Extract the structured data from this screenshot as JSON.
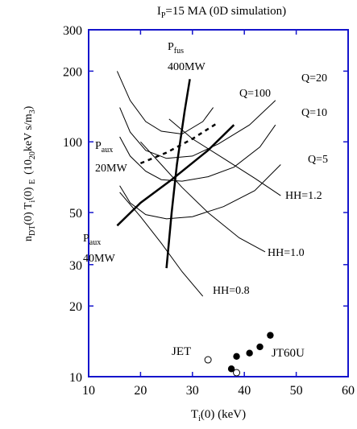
{
  "chart_data": {
    "type": "line",
    "title_main": "I",
    "title_sub": "P",
    "title_rest": "=15 MA (0D simulation)",
    "xlabel_main": "T",
    "xlabel_sub": "i",
    "xlabel_rest": "(0)  (keV)",
    "ylabel": {
      "n": "n",
      "n_sub": "DT",
      "n_rest": "(0) T",
      "t_sub": "i",
      "t_rest": "(0)  ",
      "tau_sub": "E",
      "unit_open": "(10",
      "unit_exp": "20",
      "unit_mid": "keV s/m",
      "unit_pow": "3",
      "unit_close": ")"
    },
    "xlim": [
      10,
      60
    ],
    "ylim": [
      10,
      300
    ],
    "yscale": "log",
    "x_ticks": [
      10,
      20,
      30,
      40,
      50,
      60
    ],
    "y_ticks": [
      10,
      20,
      30,
      50,
      100,
      200,
      300
    ],
    "x_tick_labels": [
      "10",
      "20",
      "30",
      "40",
      "50",
      "60"
    ],
    "y_tick_labels": [
      "10",
      "20",
      "30",
      "50",
      "100",
      "200",
      "300"
    ],
    "curves": [
      {
        "label": "Q=100",
        "x": [
          15.5,
          18,
          21,
          24,
          28,
          32,
          34
        ],
        "y": [
          200,
          150,
          122,
          111,
          108,
          122,
          140
        ],
        "width": 1
      },
      {
        "label": "Q=20",
        "x": [
          16,
          18,
          21,
          25,
          30,
          35,
          41,
          46
        ],
        "y": [
          140,
          110,
          92,
          85,
          87,
          98,
          118,
          150
        ],
        "width": 1
      },
      {
        "label": "Q=10",
        "x": [
          16,
          18,
          21,
          24,
          28,
          33,
          38,
          43,
          46
        ],
        "y": [
          105,
          87,
          75,
          69,
          68,
          71,
          78,
          95,
          118
        ],
        "width": 1
      },
      {
        "label": "Q=5",
        "x": [
          16,
          18,
          21,
          25,
          30,
          36,
          42,
          47
        ],
        "y": [
          65,
          55,
          49,
          47,
          48,
          53,
          62,
          80
        ],
        "width": 1
      },
      {
        "label": "HH=1.2",
        "x": [
          25.5,
          30,
          36,
          42,
          47
        ],
        "y": [
          125,
          103,
          85,
          70,
          59
        ],
        "width": 1
      },
      {
        "label": "HH=1.0",
        "x": [
          20,
          24,
          28,
          33,
          39,
          44
        ],
        "y": [
          100,
          80,
          64,
          50,
          39,
          34
        ],
        "width": 1
      },
      {
        "label": "HH=0.8",
        "x": [
          16,
          20,
          24,
          28,
          32
        ],
        "y": [
          61,
          48,
          37,
          28,
          22
        ],
        "width": 1
      },
      {
        "label": "Pfus 400MW",
        "x": [
          25,
          26,
          27,
          28.5,
          29.5
        ],
        "y": [
          29,
          50,
          80,
          135,
          185
        ],
        "width": 2.5
      },
      {
        "label": "Paux 40MW",
        "x": [
          15.5,
          20,
          26,
          33,
          38
        ],
        "y": [
          44,
          55,
          69,
          92,
          118
        ],
        "width": 2.5
      }
    ],
    "dashed": {
      "label": "Paux 20MW",
      "x": [
        20,
        25,
        30,
        35
      ],
      "y": [
        81,
        90,
        103,
        121
      ]
    },
    "points_open": [
      {
        "label": "JET",
        "x": [
          33,
          38.5
        ],
        "y": [
          11.8,
          10.4
        ]
      }
    ],
    "points_filled": [
      {
        "label": "JT60U",
        "x": [
          37.5,
          38.5,
          41,
          43,
          45
        ],
        "y": [
          10.8,
          12.2,
          12.6,
          13.4,
          15
        ]
      }
    ],
    "labels": {
      "q100": "Q=100",
      "q20": "Q=20",
      "q10": "Q=10",
      "q5": "Q=5",
      "hh12": "HH=1.2",
      "hh10": "HH=1.0",
      "hh08": "HH=0.8",
      "pfus_main": "P",
      "pfus_sub": "fus",
      "pfus_val": "400MW",
      "paux20_main": "P",
      "paux20_sub": "aux",
      "paux20_val": "20MW",
      "paux40_main": "P",
      "paux40_sub": "aux",
      "paux40_val": "40MW",
      "jet": "JET",
      "jt60u": "JT60U"
    }
  }
}
